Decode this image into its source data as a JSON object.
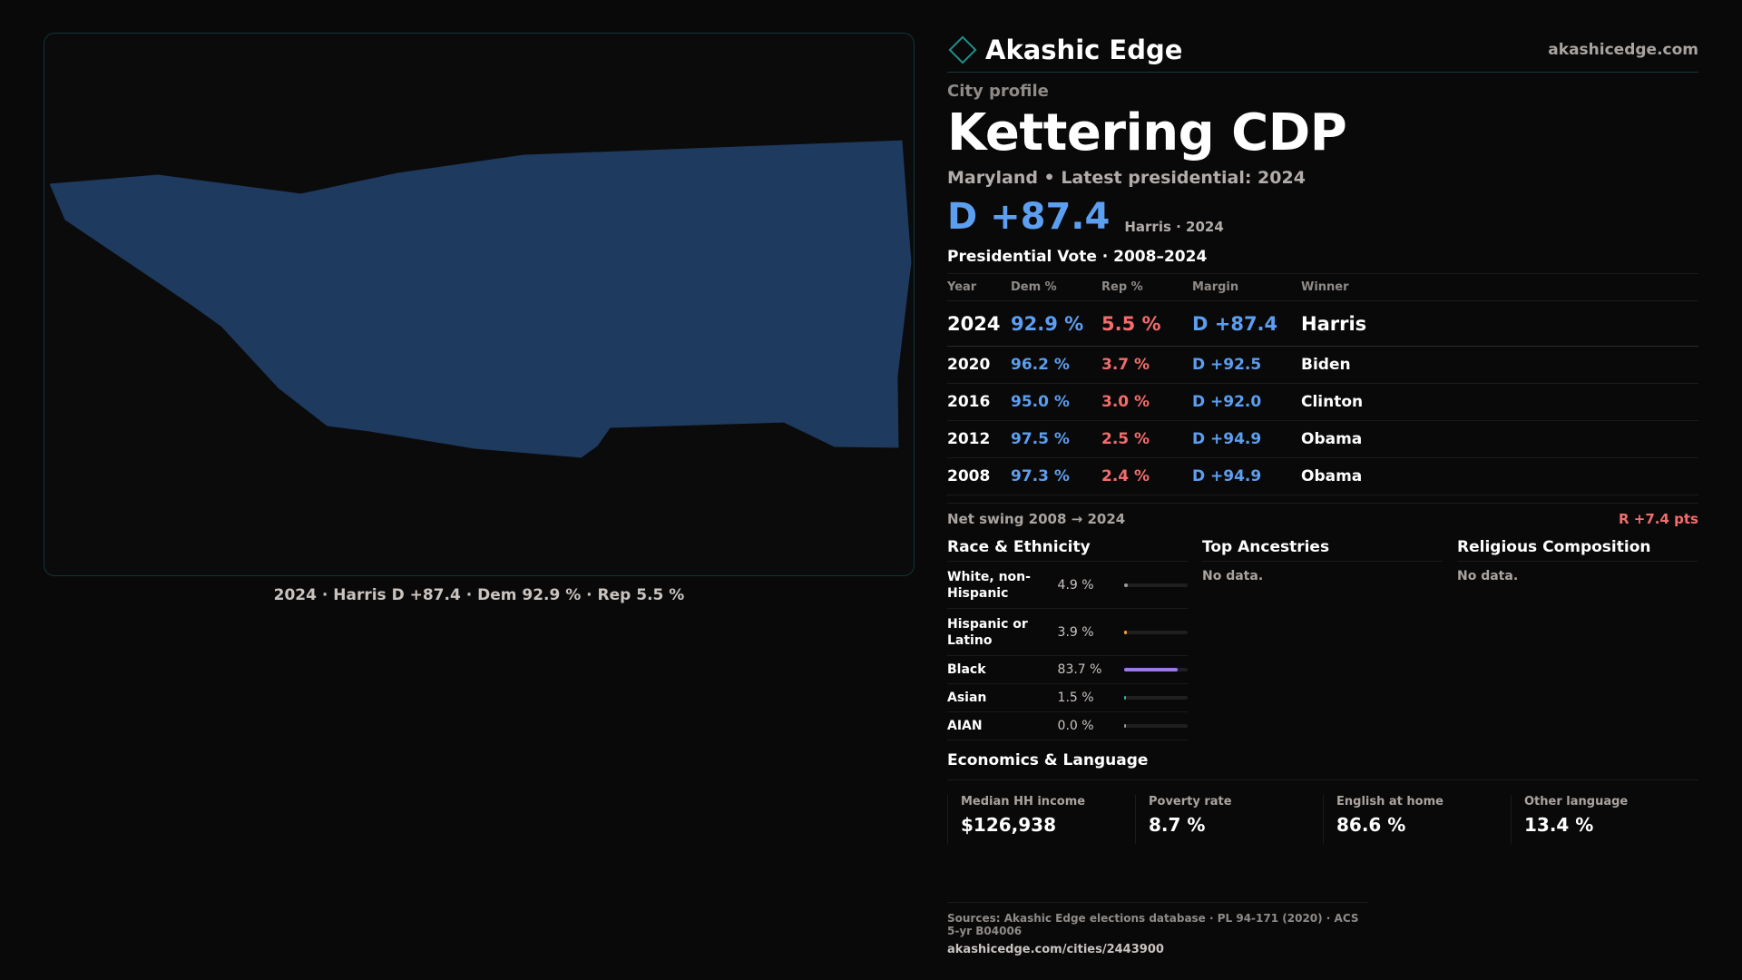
{
  "map": {
    "caption": "2024 · Harris D +87.4 · Dem 92.9 % · Rep 5.5 %",
    "fill_color": "#1e3a5f",
    "border_color": "#11343a"
  },
  "header": {
    "brand": "Akashic Edge",
    "site": "akashicedge.com",
    "brand_icon": "diamond-icon"
  },
  "profile": {
    "kicker": "City profile",
    "title": "Kettering CDP",
    "subtitle": "Maryland • Latest presidential: 2024",
    "headline_margin": "D +87.4",
    "headline_note": "Harris · 2024"
  },
  "vote": {
    "title": "Presidential Vote · 2008–2024",
    "headers": [
      "Year",
      "Dem %",
      "Rep %",
      "Margin",
      "Winner"
    ],
    "rows": [
      {
        "year": "2024",
        "dem": "92.9 %",
        "rep": "5.5 %",
        "margin": "D +87.4",
        "winner": "Harris"
      },
      {
        "year": "2020",
        "dem": "96.2 %",
        "rep": "3.7 %",
        "margin": "D +92.5",
        "winner": "Biden"
      },
      {
        "year": "2016",
        "dem": "95.0 %",
        "rep": "3.0 %",
        "margin": "D +92.0",
        "winner": "Clinton"
      },
      {
        "year": "2012",
        "dem": "97.5 %",
        "rep": "2.5 %",
        "margin": "D +94.9",
        "winner": "Obama"
      },
      {
        "year": "2008",
        "dem": "97.3 %",
        "rep": "2.4 %",
        "margin": "D +94.9",
        "winner": "Obama"
      }
    ],
    "swing_label": "Net swing 2008 → 2024",
    "swing_value": "R +7.4 pts"
  },
  "race": {
    "title": "Race & Ethnicity",
    "rows": [
      {
        "name": "White, non-Hispanic",
        "value": "4.9 %",
        "pct": 4.9,
        "color": "#9a9a9a"
      },
      {
        "name": "Hispanic or Latino",
        "value": "3.9 %",
        "pct": 3.9,
        "color": "#e8a33c"
      },
      {
        "name": "Black",
        "value": "83.7 %",
        "pct": 83.7,
        "color": "#9b7ae6"
      },
      {
        "name": "Asian",
        "value": "1.5 %",
        "pct": 1.5,
        "color": "#3cb0a8"
      },
      {
        "name": "AIAN",
        "value": "0.0 %",
        "pct": 0.0,
        "color": "#9a9a9a"
      }
    ]
  },
  "ancestries": {
    "title": "Top Ancestries",
    "empty": "No data."
  },
  "religion": {
    "title": "Religious Composition",
    "empty": "No data."
  },
  "economics": {
    "title": "Economics & Language",
    "cells": [
      {
        "label": "Median HH income",
        "value": "$126,938"
      },
      {
        "label": "Poverty rate",
        "value": "8.7 %"
      },
      {
        "label": "English at home",
        "value": "86.6 %"
      },
      {
        "label": "Other language",
        "value": "13.4 %"
      }
    ]
  },
  "sources": {
    "line": "Sources: Akashic Edge elections database · PL 94-171 (2020) · ACS 5-yr B04006",
    "url": "akashicedge.com/cities/2443900"
  }
}
